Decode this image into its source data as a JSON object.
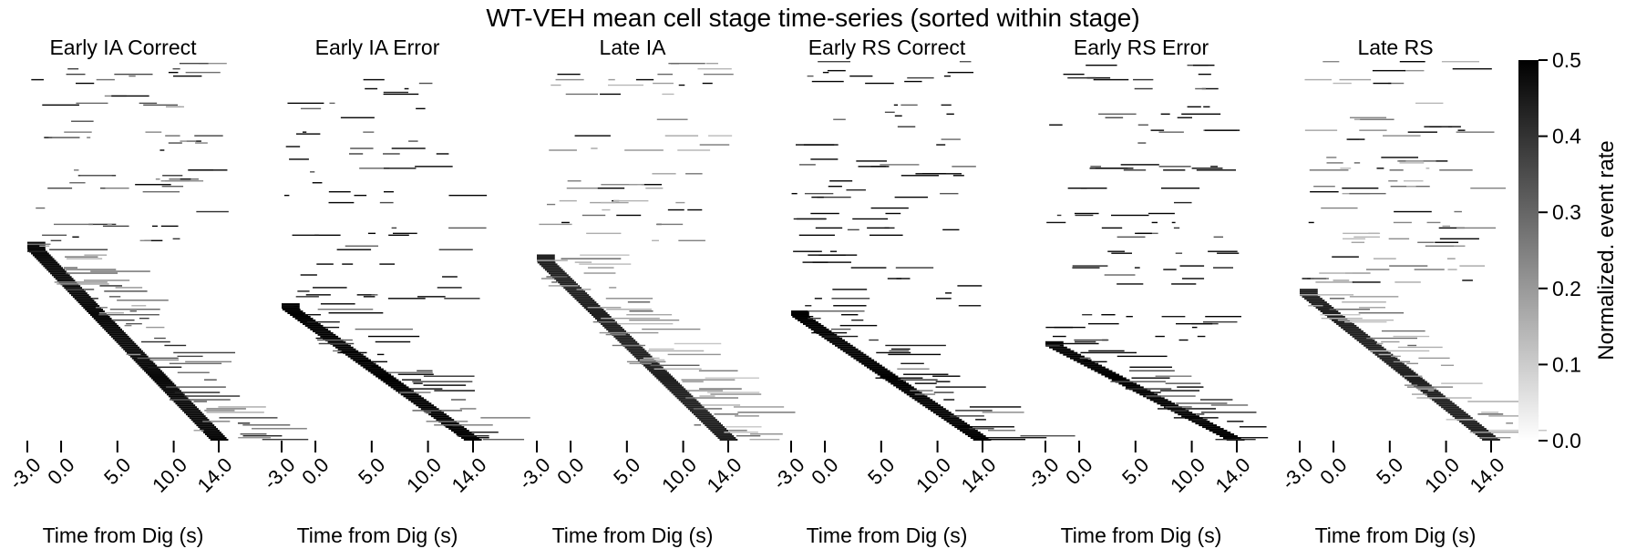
{
  "figure": {
    "title": "WT-VEH mean cell stage time-series (sorted within stage)"
  },
  "colorbar": {
    "label": "Normalized. event rate",
    "ticks": [
      "0.0",
      "0.1",
      "0.2",
      "0.3",
      "0.4",
      "0.5"
    ],
    "tick_values": [
      0.0,
      0.1,
      0.2,
      0.3,
      0.4,
      0.5
    ],
    "range": [
      0.0,
      0.5
    ],
    "colormap": "Greys",
    "color_low": "#ffffff",
    "color_high": "#000000"
  },
  "chart_data": [
    {
      "type": "heatmap",
      "title": "Early IA Correct",
      "xlabel": "Time from Dig (s)",
      "x_ticks": [
        "-3.0",
        "0.0",
        "5.0",
        "10.0",
        "14.0"
      ],
      "x_tick_values": [
        -3.0,
        0.0,
        5.0,
        10.0,
        14.0
      ],
      "xlim": [
        -3.0,
        14.0
      ],
      "zlim": [
        0.0,
        0.5
      ],
      "sorted_cells_fraction_start": 0.48,
      "diagonal_gray": 0.22,
      "sparse_gray": 0.3
    },
    {
      "type": "heatmap",
      "title": "Early IA Error",
      "xlabel": "Time from Dig (s)",
      "x_ticks": [
        "-3.0",
        "0.0",
        "5.0",
        "10.0",
        "14.0"
      ],
      "x_tick_values": [
        -3.0,
        0.0,
        5.0,
        10.0,
        14.0
      ],
      "xlim": [
        -3.0,
        14.0
      ],
      "zlim": [
        0.0,
        0.5
      ],
      "sorted_cells_fraction_start": 0.64,
      "diagonal_gray": 0.5,
      "sparse_gray": 0.5
    },
    {
      "type": "heatmap",
      "title": "Late IA",
      "xlabel": "Time from Dig (s)",
      "x_ticks": [
        "-3.0",
        "0.0",
        "5.0",
        "10.0",
        "14.0"
      ],
      "x_tick_values": [
        -3.0,
        0.0,
        5.0,
        10.0,
        14.0
      ],
      "xlim": [
        -3.0,
        14.0
      ],
      "zlim": [
        0.0,
        0.5
      ],
      "sorted_cells_fraction_start": 0.51,
      "diagonal_gray": 0.2,
      "sparse_gray": 0.22
    },
    {
      "type": "heatmap",
      "title": "Early RS Correct",
      "xlabel": "Time from Dig (s)",
      "x_ticks": [
        "-3.0",
        "0.0",
        "5.0",
        "10.0",
        "14.0"
      ],
      "x_tick_values": [
        -3.0,
        0.0,
        5.0,
        10.0,
        14.0
      ],
      "xlim": [
        -3.0,
        14.0
      ],
      "zlim": [
        0.0,
        0.5
      ],
      "sorted_cells_fraction_start": 0.66,
      "diagonal_gray": 0.45,
      "sparse_gray": 0.45
    },
    {
      "type": "heatmap",
      "title": "Early RS Error",
      "xlabel": "Time from Dig (s)",
      "x_ticks": [
        "-3.0",
        "0.0",
        "5.0",
        "10.0",
        "14.0"
      ],
      "x_tick_values": [
        -3.0,
        0.0,
        5.0,
        10.0,
        14.0
      ],
      "xlim": [
        -3.0,
        14.0
      ],
      "zlim": [
        0.0,
        0.5
      ],
      "sorted_cells_fraction_start": 0.74,
      "diagonal_gray": 0.5,
      "sparse_gray": 0.5
    },
    {
      "type": "heatmap",
      "title": "Late RS",
      "xlabel": "Time from Dig (s)",
      "x_ticks": [
        "-3.0",
        "0.0",
        "5.0",
        "10.0",
        "14.0"
      ],
      "x_tick_values": [
        -3.0,
        0.0,
        5.0,
        10.0,
        14.0
      ],
      "xlim": [
        -3.0,
        14.0
      ],
      "zlim": [
        0.0,
        0.5
      ],
      "sorted_cells_fraction_start": 0.6,
      "diagonal_gray": 0.2,
      "sparse_gray": 0.22
    }
  ]
}
